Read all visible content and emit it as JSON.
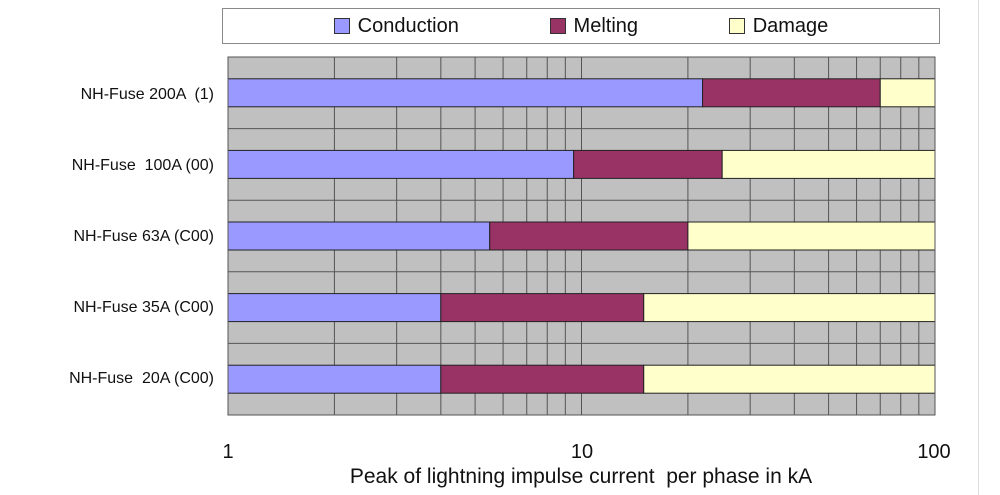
{
  "chart_data": {
    "type": "bar",
    "orientation": "horizontal",
    "stacked": true,
    "x_scale": "log",
    "xlim": [
      1,
      100
    ],
    "x_ticks": [
      {
        "value": 1,
        "label": "1"
      },
      {
        "value": 10,
        "label": "10"
      },
      {
        "value": 100,
        "label": "100"
      }
    ],
    "xlabel": "Peak of lightning impulse current  per phase in kA",
    "ylabel": "",
    "title": "",
    "grid": true,
    "legend_position": "top",
    "categories": [
      "NH-Fuse 200A  (1)",
      "NH-Fuse  100A (00)",
      "NH-Fuse 63A (C00)",
      "NH-Fuse 35A (C00)",
      "NH-Fuse  20A (C00)"
    ],
    "series": [
      {
        "name": "Conduction",
        "color": "#9999ff",
        "ranges": [
          [
            1,
            22
          ],
          [
            1,
            9.5
          ],
          [
            1,
            5.5
          ],
          [
            1,
            4
          ],
          [
            1,
            4
          ]
        ]
      },
      {
        "name": "Melting",
        "color": "#993366",
        "ranges": [
          [
            22,
            70
          ],
          [
            9.5,
            25
          ],
          [
            5.5,
            20
          ],
          [
            4,
            15
          ],
          [
            4,
            15
          ]
        ]
      },
      {
        "name": "Damage",
        "color": "#ffffcc",
        "ranges": [
          [
            70,
            100
          ],
          [
            25,
            100
          ],
          [
            20,
            100
          ],
          [
            15,
            100
          ],
          [
            15,
            100
          ]
        ]
      }
    ]
  }
}
